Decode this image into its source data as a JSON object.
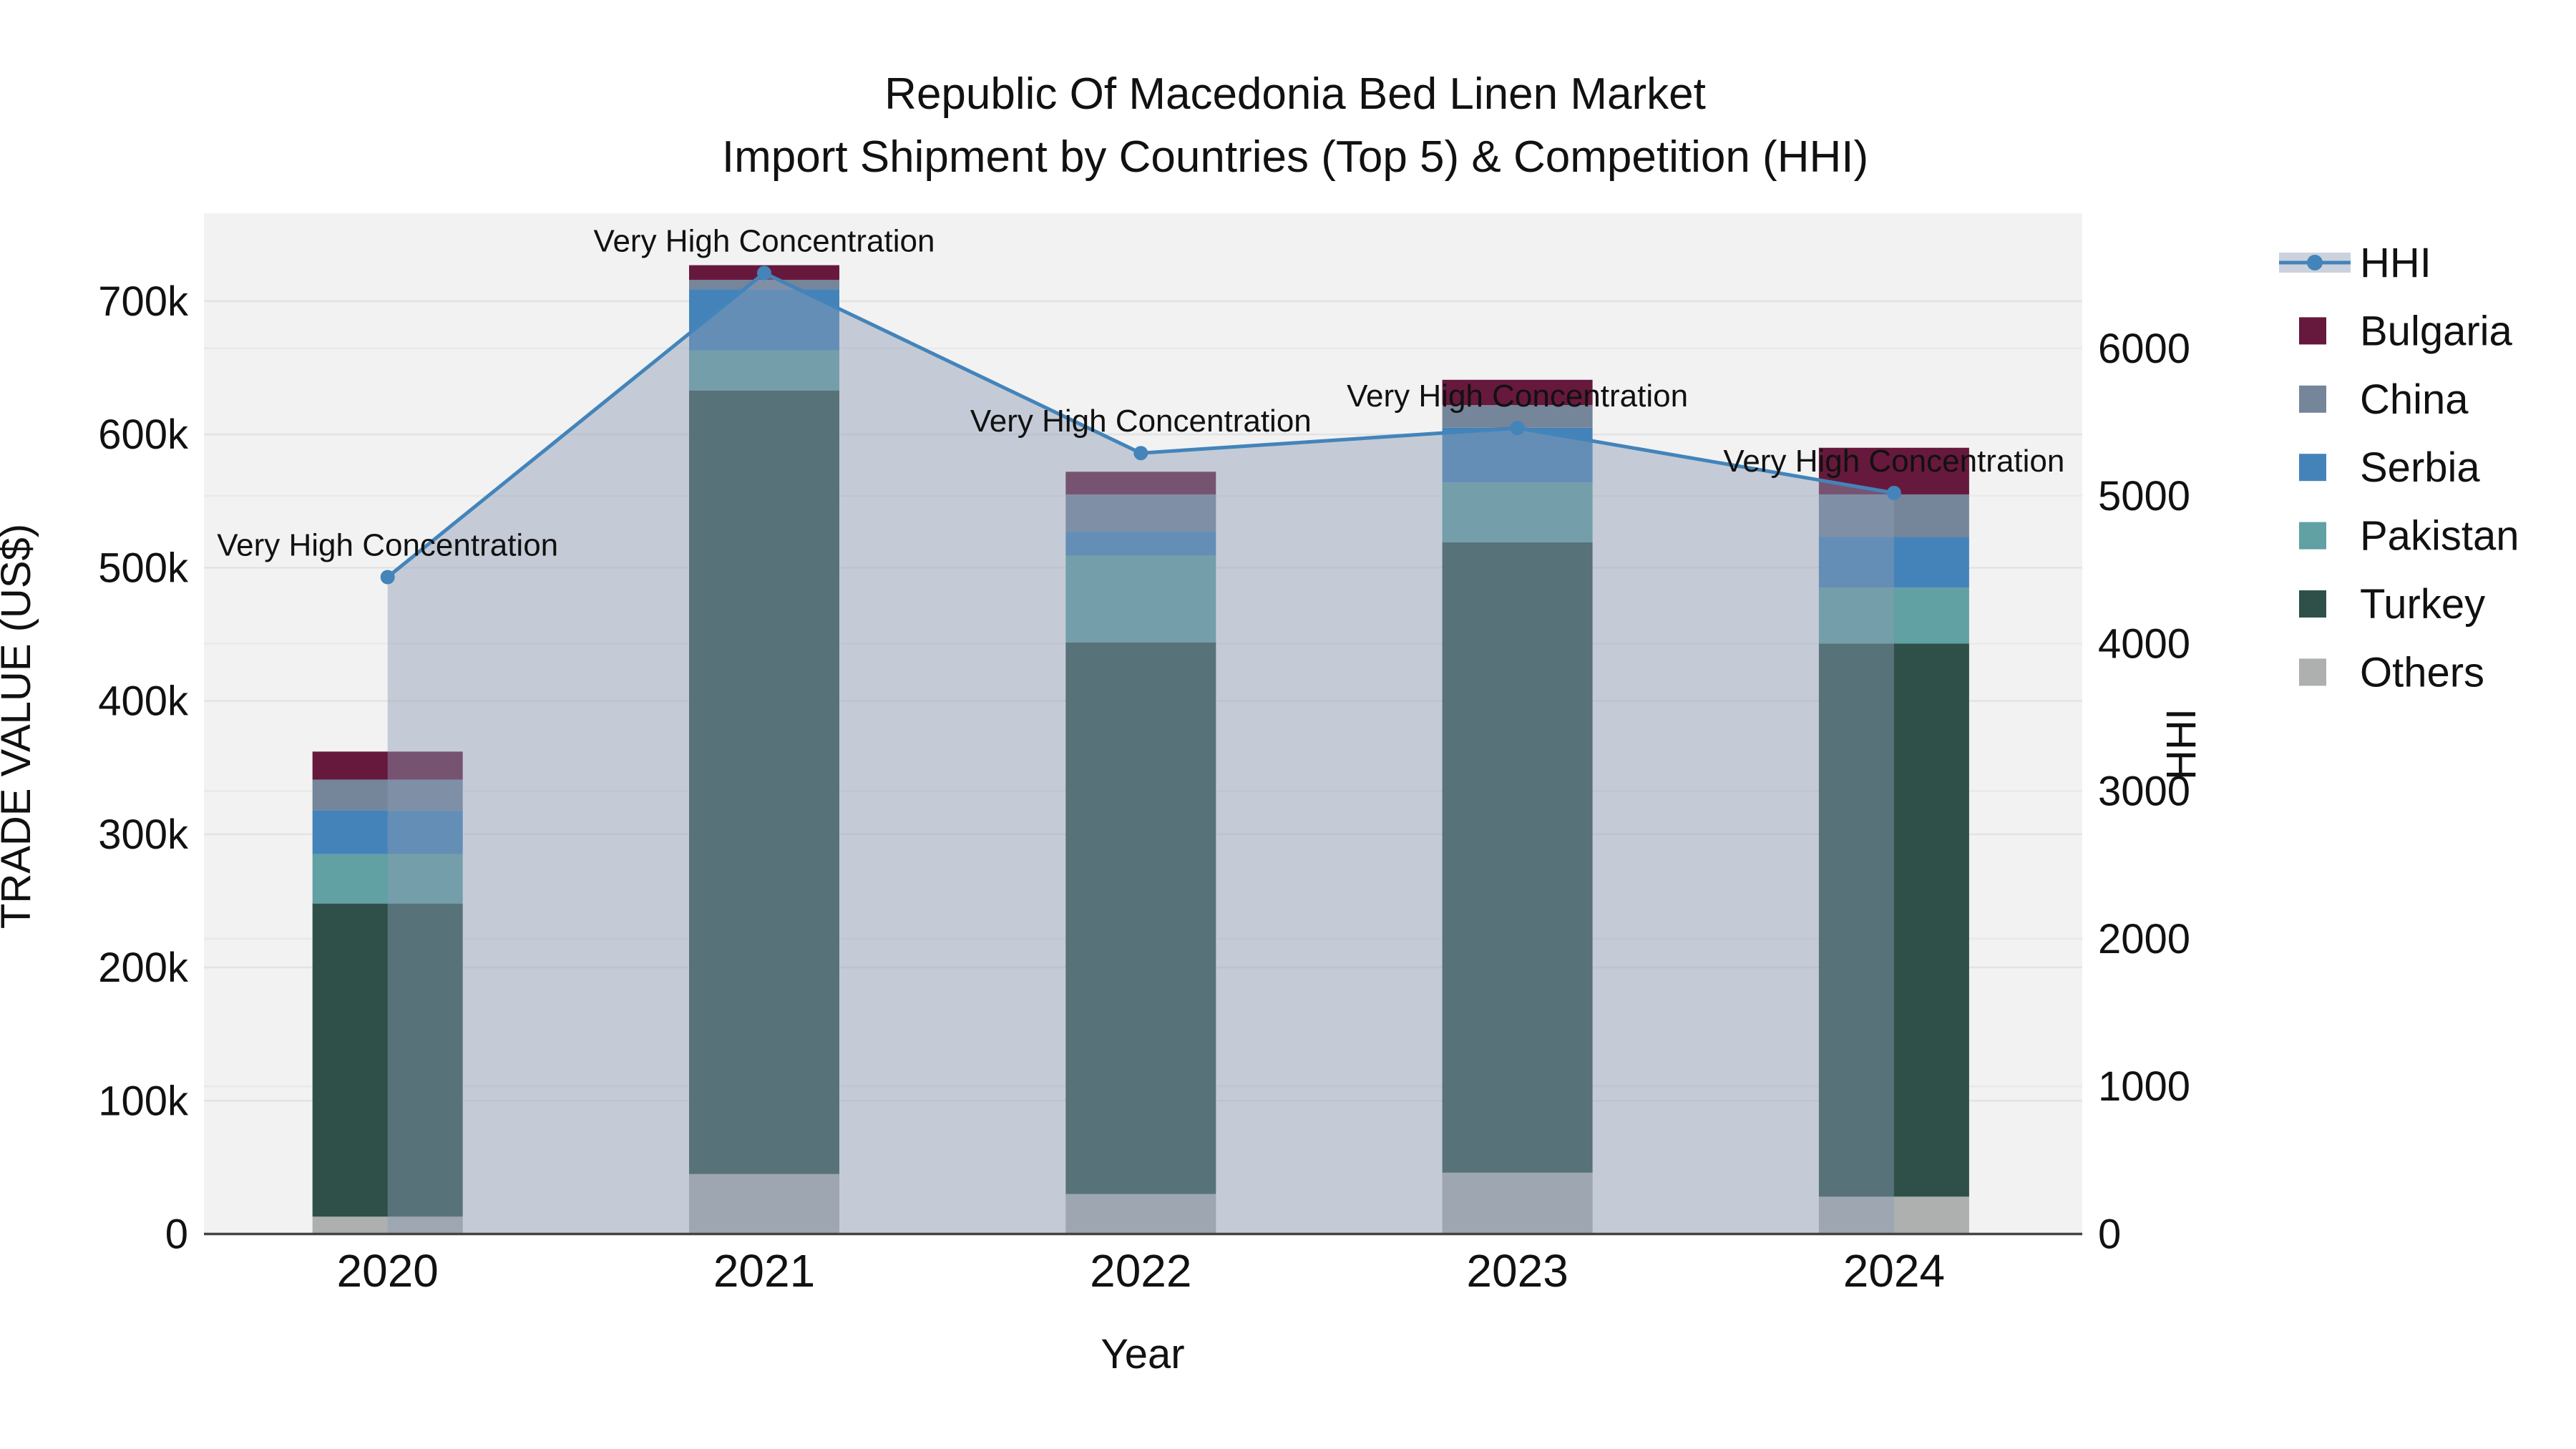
{
  "title": {
    "line1": "Republic Of Macedonia Bed Linen Market",
    "line2": "Import Shipment by Countries (Top 5) & Competition (HHI)"
  },
  "colors": {
    "Bulgaria": "#66193c",
    "China": "#75859a",
    "Serbia": "#4483b9",
    "Pakistan": "#61a0a3",
    "Turkey": "#2f5049",
    "Others": "#adb0af",
    "hhi_line": "#4384ba",
    "hhi_marker": "#4384ba",
    "hhi_fill": "rgba(140,155,180,0.45)",
    "plot_bg": "#f2f2f2",
    "grid_left": "#e3e3e3",
    "grid_right": "#e9e9e9",
    "axis_line": "#444444",
    "text": "#111111"
  },
  "legend": {
    "entries": [
      {
        "label": "HHI",
        "type": "line"
      },
      {
        "label": "Bulgaria",
        "type": "swatch"
      },
      {
        "label": "China",
        "type": "swatch"
      },
      {
        "label": "Serbia",
        "type": "swatch"
      },
      {
        "label": "Pakistan",
        "type": "swatch"
      },
      {
        "label": "Turkey",
        "type": "swatch"
      },
      {
        "label": "Others",
        "type": "swatch"
      }
    ]
  },
  "chart_data": {
    "type": "combo: stacked-bar (left axis) + line with markers (right axis)",
    "title": "Republic Of Macedonia Bed Linen Market — Import Shipment by Countries (Top 5) & Competition (HHI)",
    "categories": [
      "2020",
      "2021",
      "2022",
      "2023",
      "2024"
    ],
    "xlabel": "Year",
    "ylabel": "TRADE VALUE (US$)",
    "y2label": "HHI",
    "ylim": [
      0,
      766000
    ],
    "y2lim": [
      0,
      6915
    ],
    "grid": true,
    "legend_position": "right",
    "stack_order_bottom_to_top": [
      "Others",
      "Turkey",
      "Pakistan",
      "Serbia",
      "China",
      "Bulgaria"
    ],
    "series": [
      {
        "name": "Others",
        "values": [
          13000,
          45000,
          30000,
          46000,
          28000
        ]
      },
      {
        "name": "Turkey",
        "values": [
          235000,
          588000,
          414000,
          473000,
          415000
        ]
      },
      {
        "name": "Pakistan",
        "values": [
          37000,
          30000,
          65000,
          45000,
          42000
        ]
      },
      {
        "name": "Serbia",
        "values": [
          33000,
          46000,
          18000,
          41000,
          38000
        ]
      },
      {
        "name": "China",
        "values": [
          23000,
          7000,
          28000,
          17000,
          32000
        ]
      },
      {
        "name": "Bulgaria",
        "values": [
          21000,
          11000,
          17000,
          19000,
          35000
        ]
      }
    ],
    "bar_totals": [
      362000,
      727000,
      572000,
      641000,
      590000
    ],
    "line_series": {
      "name": "HHI",
      "axis": "right",
      "values": [
        4450,
        6510,
        5290,
        5460,
        5020
      ]
    },
    "annotations": [
      "Very High Concentration",
      "Very High Concentration",
      "Very High Concentration",
      "Very High Concentration",
      "Very High Concentration"
    ],
    "y_left_ticks": [
      {
        "v": 0,
        "label": "0"
      },
      {
        "v": 100000,
        "label": "100k"
      },
      {
        "v": 200000,
        "label": "200k"
      },
      {
        "v": 300000,
        "label": "300k"
      },
      {
        "v": 400000,
        "label": "400k"
      },
      {
        "v": 500000,
        "label": "500k"
      },
      {
        "v": 600000,
        "label": "600k"
      },
      {
        "v": 700000,
        "label": "700k"
      }
    ],
    "y_right_ticks": [
      {
        "v": 0,
        "label": "0"
      },
      {
        "v": 1000,
        "label": "1000"
      },
      {
        "v": 2000,
        "label": "2000"
      },
      {
        "v": 3000,
        "label": "3000"
      },
      {
        "v": 4000,
        "label": "4000"
      },
      {
        "v": 5000,
        "label": "5000"
      },
      {
        "v": 6000,
        "label": "6000"
      }
    ]
  }
}
